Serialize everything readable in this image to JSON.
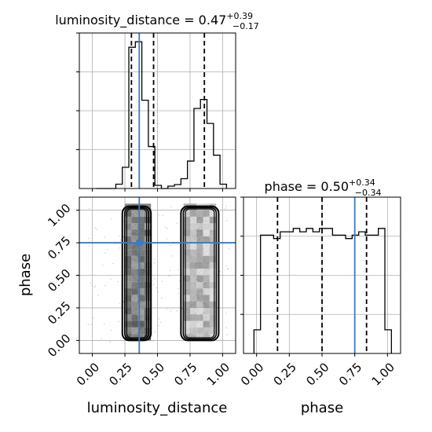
{
  "chart_data": {
    "type": "corner",
    "colors": {
      "truth": "#3b7bbf",
      "hist": "#000000",
      "grid": "#b0b0b0",
      "points": "#555555"
    },
    "panels": [
      {
        "id": "hist-luminosity",
        "type": "histogram",
        "title_prefix": "luminosity_distance = 0.47",
        "title_sup": "+0.39",
        "title_sub": "−0.17",
        "xlim": [
          -0.1,
          1.1
        ],
        "bin_edges": [
          0.03,
          0.08,
          0.13,
          0.18,
          0.23,
          0.28,
          0.33,
          0.38,
          0.43,
          0.48,
          0.53,
          0.58,
          0.63,
          0.68,
          0.73,
          0.78,
          0.83,
          0.88,
          0.93,
          0.98,
          1.03
        ],
        "counts": [
          0,
          0,
          0,
          11,
          54,
          360,
          374,
          225,
          107,
          8,
          0,
          6,
          10,
          25,
          70,
          204,
          227,
          166,
          85,
          11
        ],
        "quantiles": [
          0.3,
          0.47,
          0.86
        ],
        "truth": 0.36,
        "grid": true
      },
      {
        "id": "hist-phase",
        "type": "histogram",
        "title_prefix": "phase = 0.50",
        "title_sup": "+0.34",
        "title_sub": "−0.34",
        "xlim": [
          -0.1,
          1.1
        ],
        "xticks": [
          "0.00",
          "0.25",
          "0.50",
          "0.75",
          "1.00"
        ],
        "xlabel": "phase",
        "bin_edges": [
          -0.02,
          0.03,
          0.08,
          0.13,
          0.18,
          0.23,
          0.28,
          0.33,
          0.38,
          0.43,
          0.48,
          0.53,
          0.58,
          0.63,
          0.68,
          0.73,
          0.78,
          0.83,
          0.88,
          0.93,
          0.98,
          1.03
        ],
        "counts": [
          7,
          35,
          35,
          34,
          36,
          36,
          37,
          36,
          37,
          36,
          37,
          37,
          35,
          35,
          34,
          35,
          36,
          35,
          35,
          37,
          7
        ],
        "quantiles": [
          0.16,
          0.5,
          0.84
        ],
        "truth": 0.75,
        "grid": true
      },
      {
        "id": "scatter-2d",
        "type": "2d-density",
        "xlim": [
          -0.1,
          1.1
        ],
        "ylim": [
          -0.1,
          1.1
        ],
        "xticks": [
          "0.00",
          "0.25",
          "0.50",
          "0.75",
          "1.00"
        ],
        "yticks": [
          "0.00",
          "0.25",
          "0.50",
          "0.75",
          "1.00"
        ],
        "xlabel": "luminosity_distance",
        "ylabel": "phase",
        "truth": [
          0.36,
          0.75
        ],
        "grid": true,
        "clusters": [
          {
            "x_range": [
              0.23,
              0.45
            ],
            "y_range": [
              0.0,
              1.03
            ],
            "density": "high"
          },
          {
            "x_range": [
              0.68,
              0.97
            ],
            "y_range": [
              0.0,
              1.03
            ],
            "density": "medium"
          }
        ]
      }
    ]
  }
}
